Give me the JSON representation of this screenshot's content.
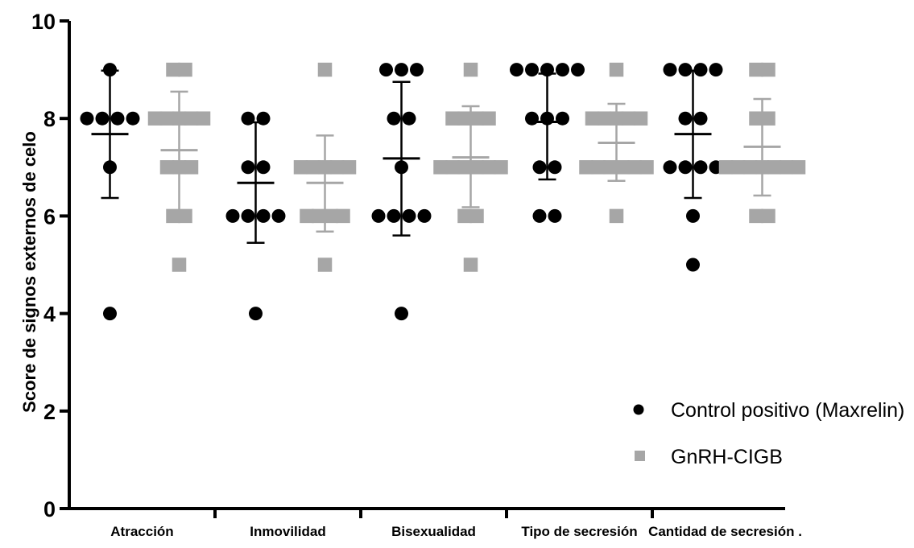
{
  "chart_data": {
    "type": "scatter",
    "title": "",
    "xlabel": "",
    "ylabel": "Score de signos externos de celo",
    "ylim": [
      0,
      10
    ],
    "yticks": [
      0,
      2,
      4,
      6,
      8,
      10
    ],
    "categories": [
      "Atracción",
      "Inmovilidad",
      "Bisexualidad",
      "Tipo de secresión",
      "Cantidad de secresión ."
    ],
    "legend_position": "bottom-right",
    "grid": false,
    "series": [
      {
        "name": "Control positivo (Maxrelin)",
        "marker": "circle",
        "color": "#000000",
        "points": [
          [
            9,
            8,
            8,
            8,
            8,
            7,
            4
          ],
          [
            8,
            8,
            7,
            7,
            6,
            6,
            6,
            6,
            4
          ],
          [
            9,
            9,
            9,
            8,
            8,
            7,
            6,
            6,
            6,
            6,
            4
          ],
          [
            9,
            9,
            9,
            9,
            9,
            8,
            8,
            8,
            7,
            7,
            6,
            6
          ],
          [
            9,
            9,
            9,
            9,
            8,
            8,
            7,
            7,
            7,
            7,
            6,
            5
          ]
        ],
        "mean": [
          7.68,
          6.68,
          7.18,
          7.93,
          7.68
        ],
        "sd_upper": [
          8.98,
          7.92,
          8.75,
          8.92,
          8.98
        ],
        "sd_lower": [
          6.37,
          5.45,
          5.6,
          6.75,
          6.37
        ]
      },
      {
        "name": "GnRH-CIGB",
        "marker": "square",
        "color": "#a6a6a6",
        "points": [
          [
            9,
            9,
            8,
            8,
            8,
            8,
            8,
            7,
            7,
            7,
            6,
            6,
            5
          ],
          [
            9,
            7,
            7,
            7,
            7,
            7,
            6,
            6,
            6,
            6,
            5
          ],
          [
            9,
            8,
            8,
            8,
            8,
            7,
            7,
            7,
            7,
            7,
            7,
            6,
            6,
            5
          ],
          [
            9,
            8,
            8,
            8,
            8,
            8,
            7,
            7,
            7,
            7,
            7,
            7,
            6
          ],
          [
            9,
            9,
            8,
            8,
            7,
            7,
            7,
            7,
            7,
            7,
            7,
            6,
            6
          ]
        ],
        "mean": [
          7.35,
          6.68,
          7.2,
          7.5,
          7.42
        ],
        "sd_upper": [
          8.55,
          7.65,
          8.25,
          8.3,
          8.4
        ],
        "sd_lower": [
          6.0,
          5.68,
          6.18,
          6.72,
          6.42
        ]
      }
    ]
  }
}
